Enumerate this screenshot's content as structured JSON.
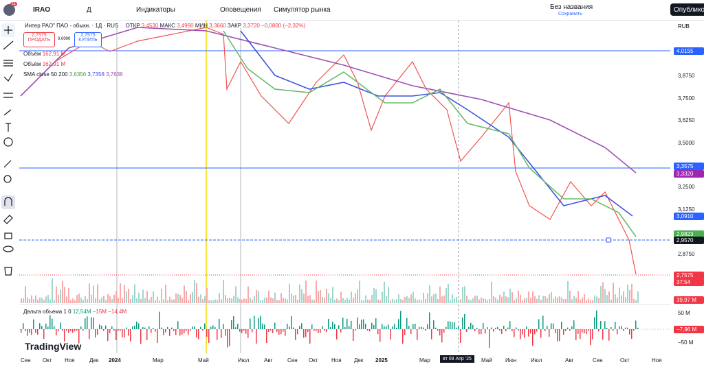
{
  "toolbar": {
    "notifications": "11",
    "symbol": "IRAO",
    "interval": "Д",
    "indicators": "Индикаторы",
    "alerts": "Оповещения",
    "replay": "Симулятор рынка",
    "layout_name": "Без названия",
    "layout_status": "Сохранить",
    "publish": "Опубликовать"
  },
  "legend": {
    "title": "Интер РАО\" ПАО - обыкн. · 1Д · RUS",
    "open_label": "ОТКР",
    "open": "3,4530",
    "high_label": "МАКС",
    "high": "3,4990",
    "low_label": "МИН",
    "low": "3,3660",
    "close_label": "ЗАКР",
    "close": "3,3720",
    "change": "−0,0800 (−2,32%)",
    "sell_price": "2,7575",
    "sell": "ПРОДАТЬ",
    "spread": "0,0000",
    "buy_price": "2,7575",
    "buy": "КУПИТЬ",
    "volume1": "Объём",
    "volume1_value": "162,91 M",
    "volume2": "Объём",
    "volume2_value": "162,91 M",
    "sma": "SMA close 50 200",
    "sma_values": [
      "3,6356",
      "3,7358",
      "3,7638"
    ],
    "delta": "Дельта объема 1 0",
    "delta_values": [
      "12,54M",
      "−15M",
      "−14,4M"
    ]
  },
  "currency": "RUB",
  "price_axis": [
    "3,8750",
    "3,7500",
    "3,6250",
    "3,5000",
    "3,2500",
    "3,1250",
    "2,8750"
  ],
  "price_badges": [
    "4,0155",
    "3,3575",
    "3,3320",
    "3,0910",
    "2,9823",
    "2,9570",
    "2,7575",
    "37:54",
    "39,97 M"
  ],
  "delta_axis": [
    "50 M",
    "−7,96 M",
    "−50 M"
  ],
  "time_axis": [
    "Сен",
    "Окт",
    "Ноя",
    "Дек",
    "2024",
    "Мар",
    "Май",
    "Июл",
    "Авг",
    "Сен",
    "Окт",
    "Ноя",
    "Дек",
    "2025",
    "Мар",
    "Май",
    "Июн",
    "Июл",
    "Авг",
    "Сен",
    "Окт",
    "Ноя"
  ],
  "crosshair_date": "вт 08 Апр '25",
  "brand": "TradingView"
}
